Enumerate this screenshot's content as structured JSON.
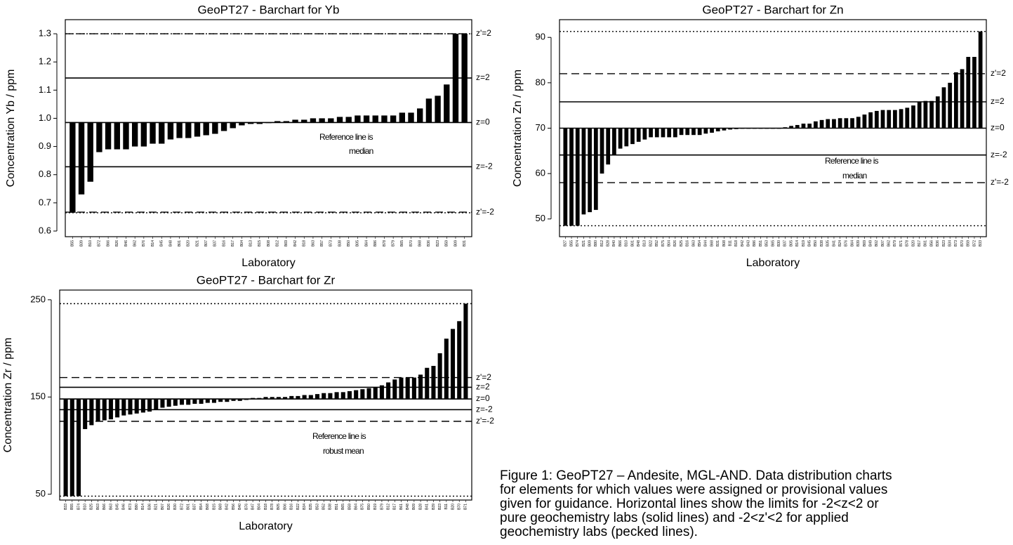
{
  "chart_data": [
    {
      "type": "bar",
      "title": "GeoPT27 - Barchart for Yb",
      "ylabel": "Concentration Yb / ppm",
      "xlabel": "Laboratory",
      "categories": [
        "B55",
        "B39",
        "B10",
        "B72",
        "B66",
        "B26",
        "B46",
        "B62",
        "B76",
        "B14",
        "B45",
        "B48",
        "B01",
        "B20",
        "B21",
        "B07",
        "B37",
        "B16",
        "B17",
        "B04",
        "B13",
        "B15",
        "B08",
        "B12",
        "B69",
        "B42",
        "B18",
        "B63",
        "B57",
        "B73",
        "B38",
        "B50",
        "B05",
        "B64",
        "B86",
        "B78",
        "B79",
        "B65",
        "B70",
        "B68",
        "B36",
        "B23",
        "B59",
        "B09",
        "B31"
      ],
      "values": [
        0.665,
        0.73,
        0.775,
        0.88,
        0.89,
        0.89,
        0.89,
        0.9,
        0.9,
        0.91,
        0.91,
        0.925,
        0.93,
        0.93,
        0.935,
        0.94,
        0.945,
        0.955,
        0.965,
        0.975,
        0.98,
        0.98,
        0.985,
        0.99,
        0.99,
        0.995,
        0.995,
        1.0,
        1.0,
        1.0,
        1.005,
        1.005,
        1.01,
        1.01,
        1.01,
        1.01,
        1.01,
        1.02,
        1.02,
        1.035,
        1.07,
        1.08,
        1.12,
        1.3,
        1.3
      ],
      "color": "#000000",
      "ylim": [
        0.58,
        1.35
      ],
      "yticks": [
        0.6,
        0.7,
        0.8,
        0.9,
        {
          "value": 1,
          "label": "1.0"
        },
        1.1,
        1.2,
        1.3
      ],
      "reference_lines": [
        {
          "value": 1.3,
          "style": "dotted"
        },
        {
          "value": 1.3,
          "label": "z'=2",
          "style": "dashed"
        },
        {
          "value": 1.143,
          "label": "z=2",
          "style": "solid"
        },
        {
          "value": 0.985,
          "label": "z=0",
          "style": "solid",
          "bar_base": true
        },
        {
          "value": 0.828,
          "label": "z=-2",
          "style": "solid"
        },
        {
          "value": 0.667,
          "label": "z'=-2",
          "style": "dashed"
        },
        {
          "value": 0.665,
          "style": "dotted"
        }
      ],
      "annotation": [
        "Reference line is",
        "median"
      ]
    },
    {
      "type": "bar",
      "title": "GeoPT27 - Barchart for Zn",
      "ylabel": "Concentration Zn / ppm",
      "xlabel": "Laboratory",
      "categories": [
        "B27",
        "B55",
        "B74",
        "B21",
        "B09",
        "B80",
        "B12",
        "B28",
        "B40",
        "B66",
        "B10",
        "B01",
        "B48",
        "B13",
        "B22",
        "B52",
        "B75",
        "B04",
        "B26",
        "B25",
        "B16",
        "B63",
        "B54",
        "B44",
        "B68",
        "B31",
        "B08",
        "B11",
        "B18",
        "B42",
        "B43",
        "B86",
        "B51",
        "B53",
        "B65",
        "B30",
        "B37",
        "B05",
        "B14",
        "B19",
        "B45",
        "B50",
        "B38",
        "B35",
        "B41",
        "B24",
        "B76",
        "B64",
        "B39",
        "B69",
        "B49",
        "B02",
        "B07",
        "B62",
        "B79",
        "B71",
        "B78",
        "B20",
        "B17",
        "B61",
        "B56",
        "B36",
        "B23",
        "B34",
        "B73",
        "B70",
        "B59",
        "B72",
        "B33"
      ],
      "values": [
        48.5,
        48.5,
        48.5,
        51,
        51.5,
        52,
        60,
        62,
        64,
        65.5,
        66,
        66.5,
        67,
        67.5,
        68,
        68,
        68,
        68,
        68,
        68.5,
        68.5,
        68.5,
        68.5,
        68.8,
        69,
        69.3,
        69.5,
        69.7,
        69.8,
        70,
        70,
        70,
        70,
        70,
        70,
        70,
        70.2,
        70.5,
        70.7,
        71,
        71,
        71.5,
        71.8,
        72,
        72,
        72.2,
        72.2,
        72.2,
        72.5,
        73,
        73.5,
        73.8,
        74,
        74,
        74,
        74.2,
        74.5,
        75,
        75.8,
        76,
        76,
        77,
        79,
        80,
        82.3,
        83,
        85.7,
        85.7,
        91.3
      ],
      "color": "#000000",
      "ylim": [
        46.1,
        93.9
      ],
      "yticks": [
        50,
        60,
        70,
        80,
        90
      ],
      "reference_lines": [
        {
          "value": 91.3,
          "style": "dotted"
        },
        {
          "value": 82,
          "label": "z'=2",
          "style": "dashed"
        },
        {
          "value": 75.8,
          "label": "z=2",
          "style": "solid"
        },
        {
          "value": 70,
          "label": "z=0",
          "style": "solid",
          "bar_base": true
        },
        {
          "value": 64.1,
          "label": "z=-2",
          "style": "solid"
        },
        {
          "value": 58,
          "label": "z'=-2",
          "style": "dashed"
        },
        {
          "value": 48.5,
          "style": "dotted"
        }
      ],
      "annotation": [
        "Reference line is",
        "median"
      ]
    },
    {
      "type": "bar",
      "title": "GeoPT27 - Barchart for Zr",
      "ylabel": "Concentration Zr / ppm",
      "xlabel": "Laboratory",
      "categories": [
        "B33",
        "B55",
        "B74",
        "B10",
        "B25",
        "B03",
        "B66",
        "B63",
        "B45",
        "B46",
        "B73",
        "B80",
        "B14",
        "B36",
        "B21",
        "B07",
        "B26",
        "B30",
        "B72",
        "B01",
        "B37",
        "B54",
        "B68",
        "B15",
        "B69",
        "B42",
        "B56",
        "B40",
        "B76",
        "B47",
        "B04",
        "B18",
        "B78",
        "B05",
        "B06",
        "B16",
        "B22",
        "B34",
        "B35",
        "B53",
        "B52",
        "B38",
        "B51",
        "B65",
        "B59",
        "B64",
        "B75",
        "B50",
        "B19",
        "B79",
        "B12",
        "B17",
        "B61",
        "B48",
        "B09",
        "B28",
        "B41",
        "B39",
        "B23",
        "B11",
        "B20",
        "B70",
        "B71"
      ],
      "values": [
        48,
        48,
        48,
        117,
        121,
        125,
        126,
        127,
        129,
        131,
        132,
        133,
        134,
        135,
        137,
        139,
        140,
        141,
        142,
        142,
        143,
        143,
        144,
        144,
        145,
        145,
        146,
        146,
        147,
        149,
        149,
        150,
        150,
        150,
        150,
        151,
        151,
        152,
        152,
        153,
        154,
        154,
        155,
        155,
        156,
        157,
        158,
        159,
        160,
        162,
        165,
        168,
        170,
        170,
        170,
        173,
        180,
        182,
        195,
        210,
        220,
        228,
        246
      ],
      "color": "#000000",
      "ylim": [
        44,
        260
      ],
      "yticks": [
        50,
        150,
        250
      ],
      "reference_lines": [
        {
          "value": 246,
          "style": "dotted"
        },
        {
          "value": 170,
          "label": "z'=2",
          "style": "dashed"
        },
        {
          "value": 160,
          "label": "z=2",
          "style": "solid"
        },
        {
          "value": 148,
          "label": "z=0",
          "style": "solid",
          "bar_base": true
        },
        {
          "value": 137,
          "label": "z=-2",
          "style": "solid"
        },
        {
          "value": 125,
          "label": "z'=-2",
          "style": "dashed"
        },
        {
          "value": 48,
          "style": "dotted"
        }
      ],
      "annotation": [
        "Reference line is",
        "robust mean"
      ]
    }
  ],
  "caption": [
    "Figure 1: GeoPT27 – Andesite, MGL-AND. Data distribution charts",
    "for elements for which values were assigned or provisional values",
    "given for guidance. Horizontal lines show the limits for -2<z<2 or",
    "pure geochemistry labs (solid lines) and -2<z'<2 for applied",
    "geochemistry labs (pecked lines)."
  ]
}
